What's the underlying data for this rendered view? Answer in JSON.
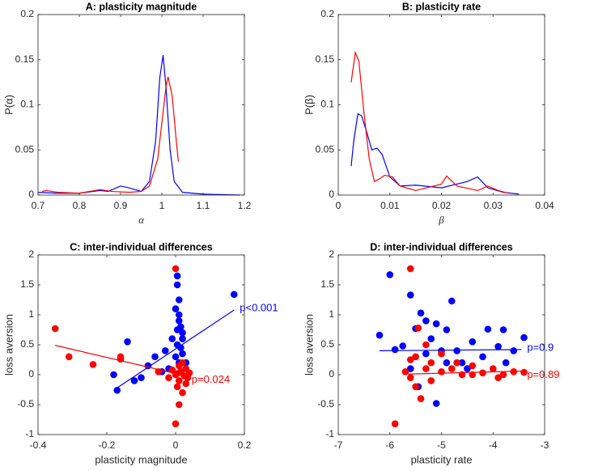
{
  "chart_data": [
    {
      "type": "line",
      "title": "A: plasticity magnitude",
      "xlabel": "α",
      "ylabel": "P(α)",
      "xlim": [
        0.7,
        1.2
      ],
      "xticks": [
        0.7,
        0.8,
        0.9,
        1,
        1.1,
        1.2
      ],
      "ylim": [
        0,
        0.2
      ],
      "yticks": [
        0,
        0.05,
        0.1,
        0.15,
        0.2
      ],
      "series": [
        {
          "color": "#0000ff",
          "x": [
            0.7,
            0.75,
            0.8,
            0.85,
            0.87,
            0.9,
            0.92,
            0.95,
            0.97,
            0.985,
            0.995,
            1.003,
            1.01,
            1.02,
            1.03,
            1.05,
            1.1,
            1.19
          ],
          "values": [
            0.003,
            0.002,
            0.002,
            0.005,
            0.004,
            0.01,
            0.008,
            0.004,
            0.015,
            0.06,
            0.13,
            0.155,
            0.12,
            0.05,
            0.015,
            0.003,
            0.001,
            0
          ]
        },
        {
          "color": "#ff0000",
          "x": [
            0.71,
            0.72,
            0.75,
            0.8,
            0.85,
            0.88,
            0.92,
            0.95,
            0.97,
            0.99,
            1.0,
            1.01,
            1.015,
            1.025,
            1.035,
            1.04
          ],
          "values": [
            0.004,
            0.005,
            0.003,
            0.002,
            0.006,
            0.004,
            0.003,
            0.004,
            0.01,
            0.04,
            0.08,
            0.12,
            0.131,
            0.11,
            0.06,
            0.037
          ]
        }
      ]
    },
    {
      "type": "line",
      "title": "B: plasticity rate",
      "xlabel": "β",
      "ylabel": "P(β)",
      "xlim": [
        0,
        0.04
      ],
      "xticks": [
        0,
        0.01,
        0.02,
        0.03,
        0.04
      ],
      "ylim": [
        0,
        0.2
      ],
      "yticks": [
        0,
        0.05,
        0.1,
        0.15,
        0.2
      ],
      "series": [
        {
          "color": "#0000ff",
          "x": [
            0.0025,
            0.003,
            0.0038,
            0.0045,
            0.0055,
            0.0065,
            0.0075,
            0.0085,
            0.01,
            0.012,
            0.015,
            0.02,
            0.025,
            0.027,
            0.029,
            0.032,
            0.035
          ],
          "values": [
            0.032,
            0.06,
            0.09,
            0.088,
            0.07,
            0.05,
            0.052,
            0.045,
            0.02,
            0.01,
            0.011,
            0.008,
            0.015,
            0.02,
            0.008,
            0.003,
            0.001
          ]
        },
        {
          "color": "#ff0000",
          "x": [
            0.0025,
            0.0033,
            0.004,
            0.005,
            0.006,
            0.007,
            0.008,
            0.009,
            0.0105,
            0.012,
            0.015,
            0.02,
            0.021,
            0.023,
            0.027,
            0.029,
            0.031,
            0.033
          ],
          "values": [
            0.125,
            0.158,
            0.148,
            0.09,
            0.04,
            0.015,
            0.018,
            0.022,
            0.02,
            0.01,
            0.005,
            0.012,
            0.021,
            0.01,
            0.005,
            0.01,
            0.005,
            0.002
          ]
        }
      ]
    },
    {
      "type": "scatter",
      "title": "C: inter-individual differences",
      "xlabel": "plasticity magnitude",
      "ylabel": "loss aversion",
      "xlim": [
        -0.4,
        0.2
      ],
      "xticks": [
        -0.4,
        -0.2,
        0,
        0.2
      ],
      "ylim": [
        -1,
        2
      ],
      "yticks": [
        -1,
        -0.5,
        0,
        0.5,
        1,
        1.5,
        2
      ],
      "series": [
        {
          "color": "#0000ff",
          "annotation": "p<0.001",
          "x": [
            0.17,
            -0.17,
            -0.18,
            -0.14,
            -0.12,
            -0.1,
            -0.08,
            -0.06,
            -0.04,
            -0.03,
            -0.02,
            -0.01,
            0,
            0.005,
            0.005,
            0.01,
            0.01,
            0.015,
            0.02,
            0.005,
            0.02,
            0,
            0.03,
            0.01,
            0.02,
            0.005,
            0.015,
            0.01
          ],
          "values": [
            1.34,
            -0.26,
            0,
            0.55,
            -0.1,
            -0.05,
            0.15,
            0.3,
            0.05,
            0.4,
            0.1,
            0.6,
            1.1,
            1.5,
            1.65,
            1.25,
            0.9,
            0.8,
            0.7,
            0.5,
            0.35,
            0.3,
            0.2,
            1.0,
            0.6,
            0.75,
            0.45,
            0.2
          ],
          "fit": {
            "x": [
              -0.17,
              0.17
            ],
            "values": [
              -0.22,
              1.08
            ]
          }
        },
        {
          "color": "#ff0000",
          "annotation": "p=0.024",
          "x": [
            -0.35,
            -0.31,
            -0.24,
            -0.16,
            -0.16,
            -0.05,
            0,
            0,
            0.01,
            0.02,
            0.01,
            0,
            0.03,
            0.04,
            -0.02,
            0.02,
            0.01,
            0.005,
            0.03,
            0.015,
            0.025,
            -0.01,
            0.035,
            0.005
          ],
          "values": [
            0.77,
            0.3,
            0.17,
            0.3,
            0.26,
            0.05,
            1.77,
            -0.82,
            -0.5,
            -0.3,
            -0.1,
            0,
            0.1,
            0.03,
            -0.05,
            0.2,
            0.15,
            -0.2,
            -0.15,
            0.05,
            -0.02,
            0.08,
            -0.05,
            0.02
          ],
          "fit": {
            "x": [
              -0.35,
              0.03
            ],
            "values": [
              0.49,
              -0.02
            ]
          }
        }
      ]
    },
    {
      "type": "scatter",
      "title": "D: inter-individual differences",
      "xlabel": "plasticity rate",
      "ylabel": "loss aversion",
      "xlim": [
        -7,
        -3
      ],
      "xticks": [
        -7,
        -6,
        -5,
        -4,
        -3
      ],
      "ylim": [
        -1,
        2
      ],
      "yticks": [
        -1,
        -0.5,
        0,
        0.5,
        1,
        1.5,
        2
      ],
      "series": [
        {
          "color": "#0000ff",
          "annotation": "p=0.9",
          "x": [
            -6.2,
            -6,
            -5.9,
            -5.75,
            -5.6,
            -5.5,
            -5.4,
            -5.3,
            -5.2,
            -5.1,
            -5,
            -4.9,
            -4.8,
            -4.7,
            -4.6,
            -4.4,
            -4.2,
            -4.1,
            -3.9,
            -3.8,
            -3.6,
            -3.4,
            -5.1,
            -5.45,
            -5.6,
            -4.9,
            -5.3,
            -4.5,
            -3.75
          ],
          "values": [
            0.66,
            1.67,
            0.42,
            0.48,
            1.33,
            0.77,
            1.03,
            0.9,
            0.6,
            0.85,
            0.4,
            0.75,
            1.23,
            0.4,
            0.2,
            0.55,
            0.3,
            0.76,
            0.47,
            0.75,
            0.4,
            0.62,
            -0.48,
            -0.2,
            0.1,
            0.2,
            0.35,
            0.1,
            0.2
          ],
          "fit": {
            "x": [
              -6.2,
              -3.45
            ],
            "values": [
              0.4,
              0.42
            ]
          }
        },
        {
          "color": "#ff0000",
          "annotation": "p=0.89",
          "x": [
            -5.9,
            -5.6,
            -5.7,
            -5.6,
            -5.5,
            -5.4,
            -5.3,
            -5.5,
            -5.2,
            -5,
            -4.8,
            -4.6,
            -4.4,
            -4.2,
            -4,
            -3.8,
            -3.6,
            -3.4,
            -5.45,
            -5.3,
            -5.6,
            -5,
            -4.7,
            -5.2,
            -4.4,
            -3.9
          ],
          "values": [
            -0.82,
            1.77,
            0.05,
            -0.05,
            0.3,
            -0.4,
            0.1,
            -0.2,
            0.2,
            0.05,
            0.1,
            0,
            0.15,
            0.03,
            0.1,
            0,
            0.05,
            0.04,
            0.78,
            0.5,
            0.25,
            0.35,
            0.2,
            -0.1,
            0,
            -0.05
          ],
          "fit": {
            "x": [
              -5.65,
              -3.45
            ],
            "values": [
              0.01,
              0.06
            ]
          }
        }
      ]
    }
  ]
}
